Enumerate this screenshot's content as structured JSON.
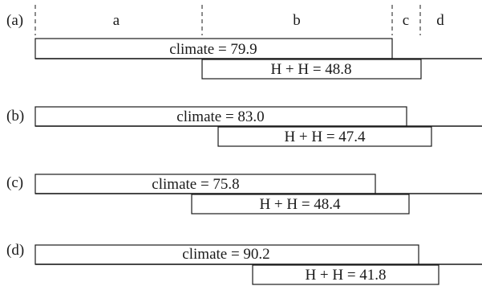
{
  "panels": [
    {
      "label": "(a)",
      "climate": "climate = 79.9",
      "hh": "H + H = 48.8"
    },
    {
      "label": "(b)",
      "climate": "climate = 83.0",
      "hh": "H + H = 47.4"
    },
    {
      "label": "(c)",
      "climate": "climate = 75.8",
      "hh": "H + H = 48.4"
    },
    {
      "label": "(d)",
      "climate": "climate = 90.2",
      "hh": "H + H = 41.8"
    }
  ],
  "regions": [
    "a",
    "b",
    "c",
    "d"
  ],
  "chart_data": {
    "type": "diagram",
    "series": [
      {
        "name": "climate",
        "values": [
          79.9,
          83.0,
          75.8,
          90.2
        ]
      },
      {
        "name": "H + H",
        "values": [
          48.8,
          47.4,
          48.4,
          41.8
        ]
      }
    ]
  }
}
